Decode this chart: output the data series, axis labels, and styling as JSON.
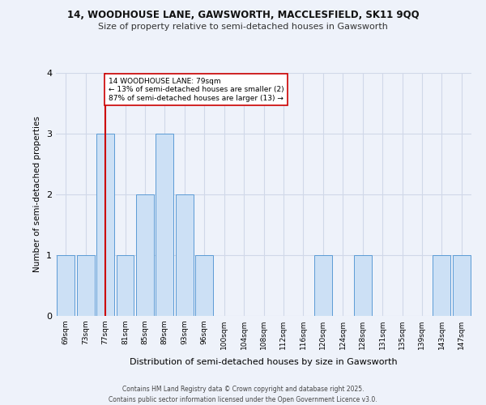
{
  "title_line1": "14, WOODHOUSE LANE, GAWSWORTH, MACCLESFIELD, SK11 9QQ",
  "title_line2": "Size of property relative to semi-detached houses in Gawsworth",
  "xlabel": "Distribution of semi-detached houses by size in Gawsworth",
  "ylabel": "Number of semi-detached properties",
  "footer": "Contains HM Land Registry data © Crown copyright and database right 2025.\nContains public sector information licensed under the Open Government Licence v3.0.",
  "bins": [
    "69sqm",
    "73sqm",
    "77sqm",
    "81sqm",
    "85sqm",
    "89sqm",
    "93sqm",
    "96sqm",
    "100sqm",
    "104sqm",
    "108sqm",
    "112sqm",
    "116sqm",
    "120sqm",
    "124sqm",
    "128sqm",
    "131sqm",
    "135sqm",
    "139sqm",
    "143sqm",
    "147sqm"
  ],
  "values": [
    1,
    1,
    3,
    1,
    2,
    3,
    2,
    1,
    0,
    0,
    0,
    0,
    0,
    1,
    0,
    1,
    0,
    0,
    0,
    1,
    1
  ],
  "bar_color": "#cce0f5",
  "bar_edge_color": "#5b9bd5",
  "highlight_bar_index": 2,
  "highlight_line_color": "#cc0000",
  "annotation_text": "14 WOODHOUSE LANE: 79sqm\n← 13% of semi-detached houses are smaller (2)\n87% of semi-detached houses are larger (13) →",
  "annotation_box_color": "#ffffff",
  "annotation_box_edge_color": "#cc0000",
  "ylim": [
    0,
    4
  ],
  "yticks": [
    0,
    1,
    2,
    3,
    4
  ],
  "grid_color": "#d0d8e8",
  "background_color": "#eef2fa",
  "plot_bg_color": "#eef2fa",
  "title1_fontsize": 8.5,
  "title2_fontsize": 8,
  "ylabel_fontsize": 7.5,
  "xlabel_fontsize": 8,
  "tick_fontsize": 6.5,
  "footer_fontsize": 5.5,
  "annot_fontsize": 6.5
}
